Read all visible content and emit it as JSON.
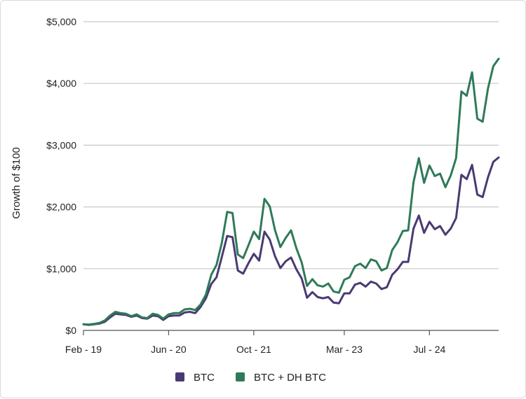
{
  "chart_data": {
    "type": "line",
    "title": "",
    "xlabel": "",
    "ylabel": "Growth of $100",
    "ylim": [
      0,
      5000
    ],
    "y_ticks": [
      0,
      1000,
      2000,
      3000,
      4000,
      5000
    ],
    "y_tick_labels": [
      "$0",
      "$1,000",
      "$2,000",
      "$3,000",
      "$4,000",
      "$5,000"
    ],
    "x_tick_labels": [
      "Feb - 19",
      "Jun - 20",
      "Oct - 21",
      "Mar - 23",
      "Jul - 24"
    ],
    "x_tick_indices": [
      0,
      16,
      32,
      49,
      65
    ],
    "grid": true,
    "legend_position": "bottom",
    "series": [
      {
        "name": "BTC",
        "color": "#4a3a73",
        "values": [
          100,
          90,
          100,
          110,
          140,
          210,
          270,
          260,
          250,
          220,
          240,
          200,
          190,
          240,
          230,
          170,
          230,
          240,
          240,
          290,
          300,
          280,
          380,
          520,
          750,
          860,
          1190,
          1530,
          1510,
          970,
          920,
          1090,
          1240,
          1130,
          1600,
          1470,
          1200,
          1010,
          1120,
          1180,
          990,
          840,
          530,
          620,
          540,
          520,
          540,
          450,
          440,
          600,
          600,
          740,
          770,
          710,
          790,
          760,
          670,
          700,
          900,
          990,
          1110,
          1110,
          1650,
          1860,
          1580,
          1760,
          1640,
          1690,
          1550,
          1650,
          1820,
          2520,
          2450,
          2680,
          2200,
          2160,
          2480,
          2730,
          2800
        ]
      },
      {
        "name": "BTC + DH BTC",
        "color": "#2f7a58",
        "values": [
          100,
          95,
          105,
          120,
          160,
          240,
          300,
          280,
          270,
          230,
          260,
          210,
          200,
          270,
          250,
          190,
          260,
          280,
          280,
          340,
          350,
          330,
          420,
          580,
          900,
          1060,
          1420,
          1920,
          1900,
          1230,
          1170,
          1380,
          1600,
          1480,
          2130,
          2010,
          1620,
          1350,
          1500,
          1620,
          1330,
          1100,
          720,
          830,
          730,
          710,
          760,
          630,
          610,
          820,
          860,
          1040,
          1080,
          1010,
          1150,
          1120,
          970,
          1010,
          1300,
          1430,
          1610,
          1620,
          2400,
          2790,
          2390,
          2670,
          2500,
          2540,
          2320,
          2510,
          2790,
          3870,
          3800,
          4180,
          3430,
          3380,
          3920,
          4280,
          4400
        ]
      }
    ]
  }
}
